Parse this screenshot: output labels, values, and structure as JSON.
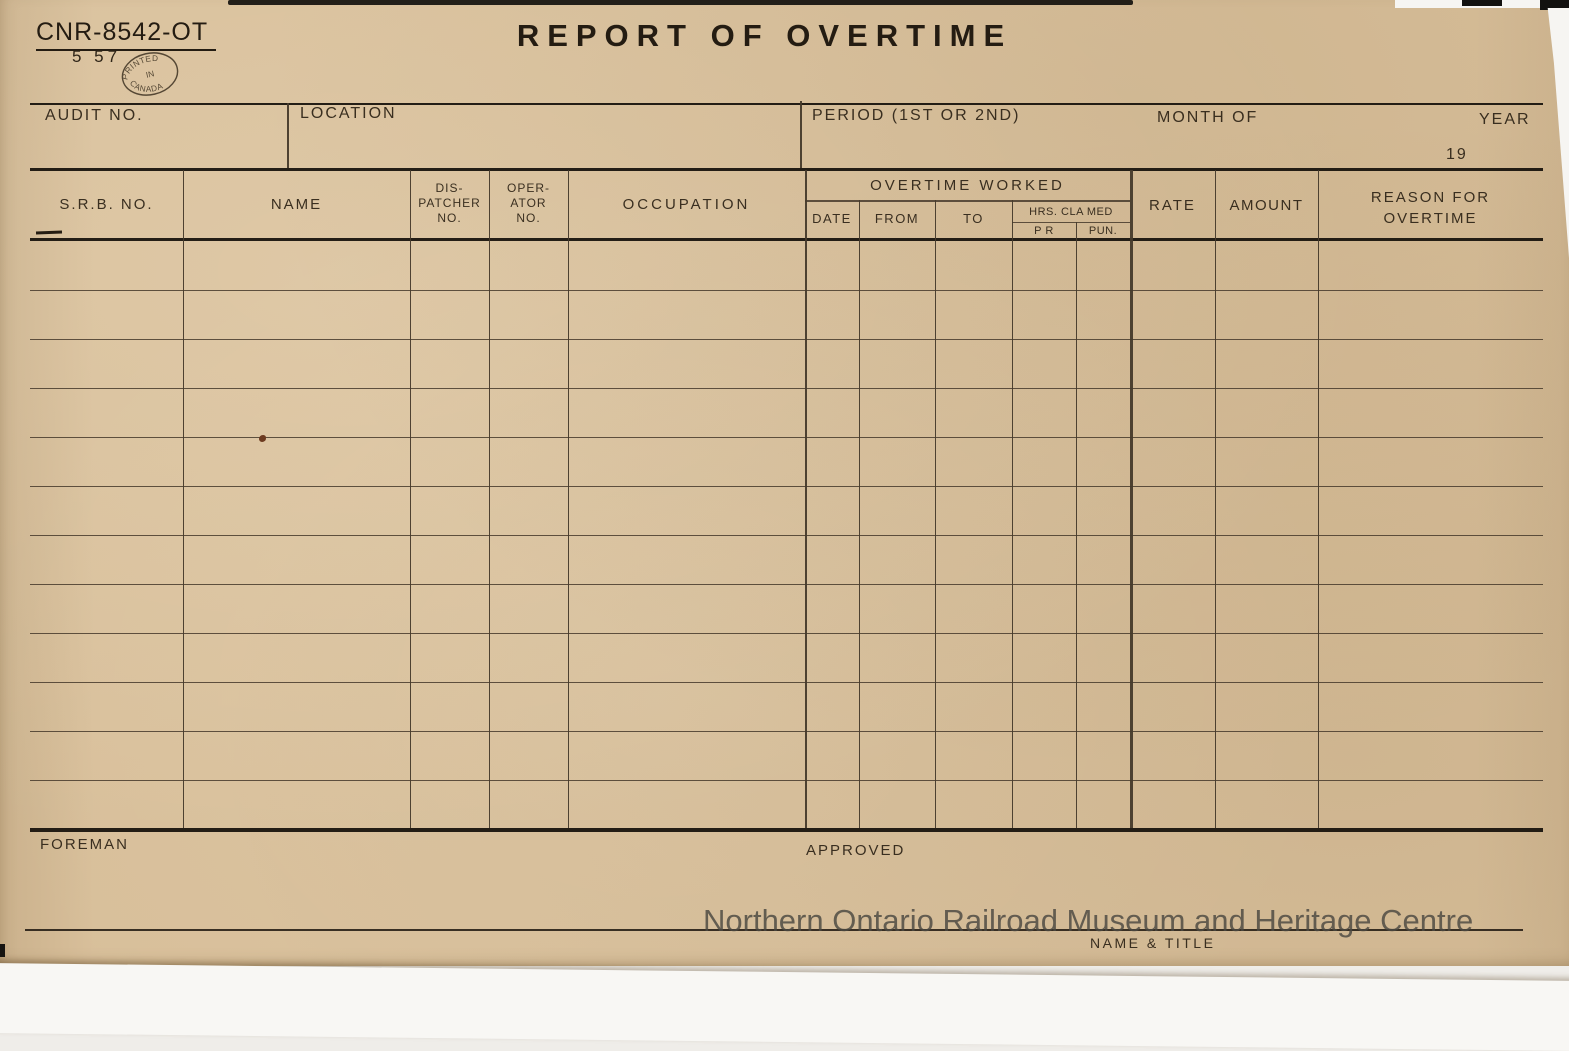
{
  "form": {
    "number": "CNR-8542-OT",
    "revision": "5 57",
    "print_stamp": {
      "top": "PRINTED",
      "middle": "IN",
      "bottom": "CANADA"
    },
    "title": "REPORT OF OVERTIME"
  },
  "header": {
    "audit_no": "AUDIT NO.",
    "location": "LOCATION",
    "period": "PERIOD (1ST OR 2ND)",
    "month_of": "MONTH OF",
    "year": "YEAR",
    "year_prefix": "19"
  },
  "table": {
    "columns": {
      "srb_no": "S.R.B. NO.",
      "name": "NAME",
      "dispatcher_no": [
        "DIS-",
        "PATCHER",
        "NO."
      ],
      "operator_no": [
        "OPER-",
        "ATOR",
        "NO."
      ],
      "occupation": "OCCUPATION",
      "overtime_worked": "OVERTIME WORKED",
      "date": "DATE",
      "from": "FROM",
      "to": "TO",
      "hrs_claimed": "HRS. CLA MED",
      "hrs_sub_left": "P R",
      "hrs_sub_right": "PUN.",
      "rate": "RATE",
      "amount": "AMOUNT",
      "reason_line1": "REASON FOR",
      "reason_line2": "OVERTIME"
    },
    "row_count": 12
  },
  "footer": {
    "foreman": "FOREMAN",
    "approved": "APPROVED",
    "name_title": "NAME & TITLE"
  },
  "watermark": "Northern Ontario Railroad Museum and Heritage Centre",
  "colors": {
    "paper": "#d8bf9a",
    "ink": "#2e2417",
    "line_heavy": "#140f0a",
    "line_thin": "#463a2b",
    "watermark": "#4b4841"
  }
}
